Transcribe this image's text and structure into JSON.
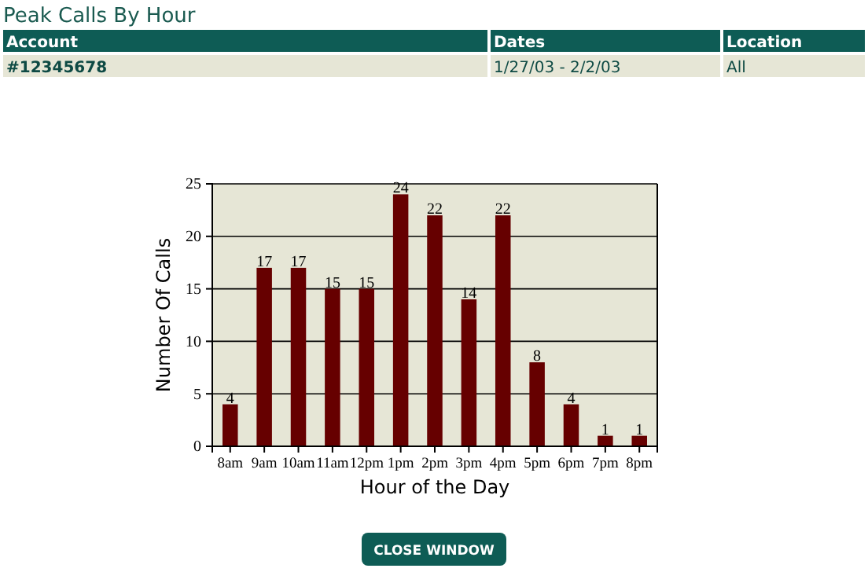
{
  "chart_data": {
    "type": "bar",
    "title": "Peak Calls By Hour",
    "xlabel": "Hour of the Day",
    "ylabel": "Number Of Calls",
    "categories": [
      "8am",
      "9am",
      "10am",
      "11am",
      "12pm",
      "1pm",
      "2pm",
      "3pm",
      "4pm",
      "5pm",
      "6pm",
      "7pm",
      "8pm"
    ],
    "values": [
      4,
      17,
      17,
      15,
      15,
      24,
      22,
      14,
      22,
      8,
      4,
      1,
      1
    ],
    "color": "#660000",
    "ylim": [
      0,
      25
    ],
    "yticks": [
      0,
      5,
      10,
      15,
      20,
      25
    ],
    "grid": "y",
    "data_labels": true,
    "annotations": [
      "Account",
      "Dates",
      "Location",
      "#12345678",
      "1/27/03 - 2/2/03",
      "All",
      "CLOSE WINDOW"
    ]
  }
}
